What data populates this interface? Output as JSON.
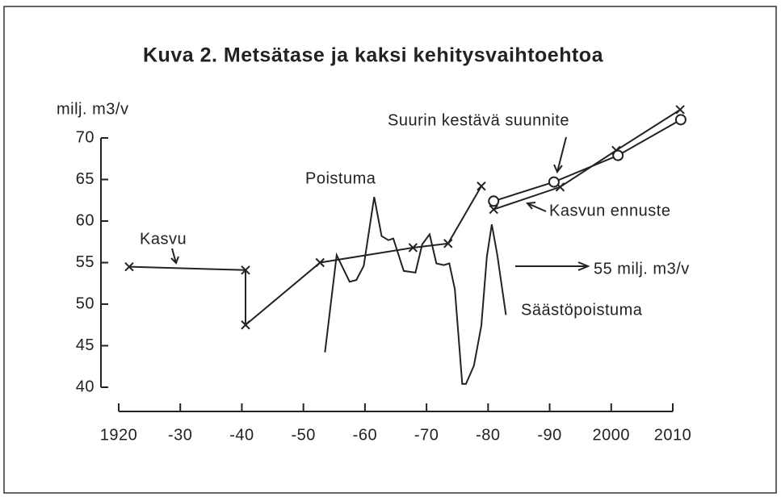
{
  "chart_data": {
    "type": "line",
    "title": "Kuva 2. Metsätase ja kaksi kehitysvaihtoehtoa",
    "y_label": "milj. m3/v",
    "xlim": [
      1920,
      2010
    ],
    "xticks": [
      {
        "value": 1920,
        "label": "1920"
      },
      {
        "value": 1930,
        "label": "-30"
      },
      {
        "value": 1940,
        "label": "-40"
      },
      {
        "value": 1950,
        "label": "-50"
      },
      {
        "value": 1960,
        "label": "-60"
      },
      {
        "value": 1970,
        "label": "-70"
      },
      {
        "value": 1980,
        "label": "-80"
      },
      {
        "value": 1990,
        "label": "-90"
      },
      2000,
      2010
    ],
    "ylim": [
      40,
      70
    ],
    "yticks": [
      40,
      45,
      50,
      55,
      60,
      65,
      70
    ],
    "annotations": [
      "Säästöpoistuma",
      "55 milj. m3/v"
    ],
    "series": [
      {
        "name": "Kasvu",
        "color": "#222222",
        "marker": "cross",
        "x": [
          1921.7,
          1940.6,
          1940.6,
          1952.7,
          1967.8,
          1973.5,
          1978.9
        ],
        "values": [
          54.5,
          54.1,
          47.5,
          55.0,
          56.8,
          57.3,
          64.2
        ]
      },
      {
        "name": "Poistuma",
        "color": "#222222",
        "marker": "none",
        "x": [
          1953.5,
          1955.4,
          1957.5,
          1958.6,
          1959.8,
          1961.5,
          1962.7,
          1963.8,
          1964.6,
          1966.3,
          1968.2,
          1969.3,
          1970.5,
          1971.6,
          1972.8,
          1973.7,
          1974.6,
          1975.8,
          1976.4,
          1977.7,
          1978.9,
          1979.8,
          1980.6,
          1981.5,
          1982.9
        ],
        "values": [
          44.2,
          55.9,
          52.7,
          52.9,
          54.6,
          62.9,
          58.2,
          57.7,
          57.9,
          54.0,
          53.8,
          57.2,
          58.4,
          54.9,
          54.7,
          54.9,
          51.8,
          40.4,
          40.4,
          42.6,
          47.4,
          55.7,
          59.6,
          55.9,
          48.7
        ]
      },
      {
        "name": "Kasvun ennuste",
        "color": "#222222",
        "marker": "cross",
        "x": [
          1980.9,
          1991.7,
          2000.8,
          2011.2
        ],
        "values": [
          61.4,
          64.1,
          68.5,
          73.4
        ]
      },
      {
        "name": "Suurin kestävä suunnite",
        "color": "#222222",
        "marker": "circle",
        "x": [
          1980.9,
          1990.7,
          2001.1,
          2011.3
        ],
        "values": [
          62.4,
          64.7,
          67.9,
          72.2
        ]
      }
    ]
  }
}
